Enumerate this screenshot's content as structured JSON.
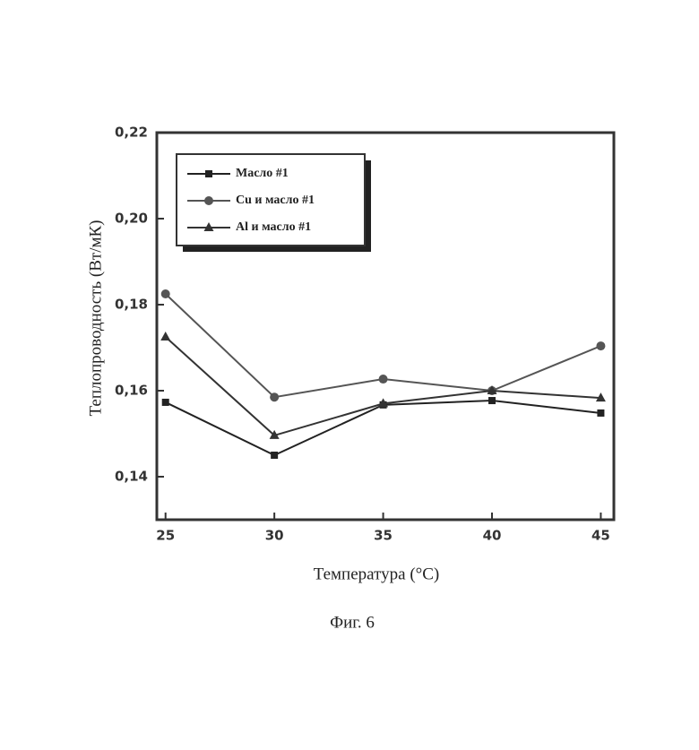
{
  "chart_data": {
    "type": "line",
    "caption": "Фиг. 6",
    "x_label": "Температура (°C)",
    "y_label": "Теплопроводность (Вт/мК)",
    "x": [
      25,
      30,
      35,
      40,
      45
    ],
    "xlim": [
      24.6,
      45.6
    ],
    "xticks": [
      25,
      30,
      35,
      40,
      45
    ],
    "ylim": [
      0.13,
      0.22
    ],
    "yticks": [
      {
        "value": 0.14,
        "label": "0,14"
      },
      {
        "value": 0.16,
        "label": "0,16"
      },
      {
        "value": 0.18,
        "label": "0,18"
      },
      {
        "value": 0.2,
        "label": "0,20"
      },
      {
        "value": 0.22,
        "label": "0,22"
      }
    ],
    "legend": "top-left",
    "series": [
      {
        "name": "Масло #1",
        "color": "#222222",
        "marker": "square",
        "values": [
          0.1573,
          0.145,
          0.1567,
          0.1577,
          0.1548
        ]
      },
      {
        "name": "Cu и масло #1",
        "color": "#555555",
        "marker": "circle",
        "values": [
          0.1825,
          0.1585,
          0.1627,
          0.16,
          0.1704
        ]
      },
      {
        "name": "Al и масло #1",
        "color": "#333333",
        "marker": "triangle",
        "values": [
          0.1725,
          0.1496,
          0.157,
          0.16,
          0.1583
        ]
      }
    ]
  }
}
